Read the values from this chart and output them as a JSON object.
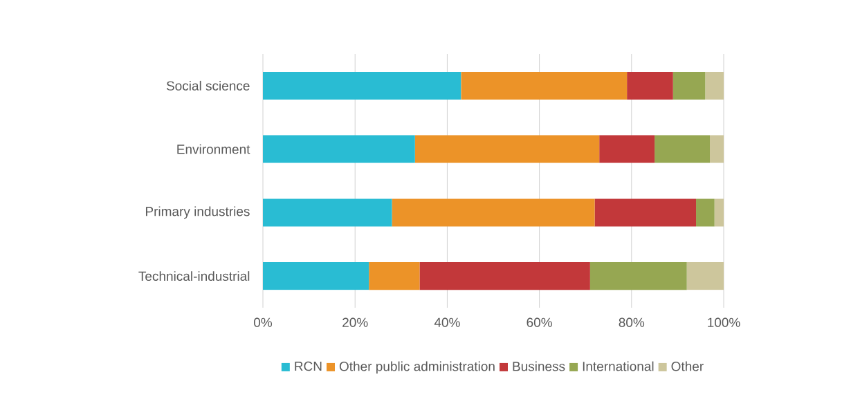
{
  "chart_data": {
    "type": "bar",
    "orientation": "horizontal",
    "stacked": true,
    "categories": [
      "Social science",
      "Environment",
      "Primary industries",
      "Technical-industrial"
    ],
    "series": [
      {
        "name": "RCN",
        "color": "#29bcd3",
        "values": [
          43,
          33,
          28,
          23
        ]
      },
      {
        "name": "Other public administration",
        "color": "#ec9328",
        "values": [
          36,
          40,
          44,
          11
        ]
      },
      {
        "name": "Business",
        "color": "#c2383a",
        "values": [
          10,
          12,
          22,
          37
        ]
      },
      {
        "name": "International",
        "color": "#96a752",
        "values": [
          7,
          12,
          4,
          21
        ]
      },
      {
        "name": "Other",
        "color": "#cdc69c",
        "values": [
          4,
          3,
          2,
          8
        ]
      }
    ],
    "xlim": [
      0,
      100
    ],
    "xticks": [
      {
        "value": 0,
        "label": "0%"
      },
      {
        "value": 20,
        "label": "20%"
      },
      {
        "value": 40,
        "label": "40%"
      },
      {
        "value": 60,
        "label": "60%"
      },
      {
        "value": 80,
        "label": "80%"
      },
      {
        "value": 100,
        "label": "100%"
      }
    ],
    "grid": "x",
    "legend": "bottom"
  }
}
